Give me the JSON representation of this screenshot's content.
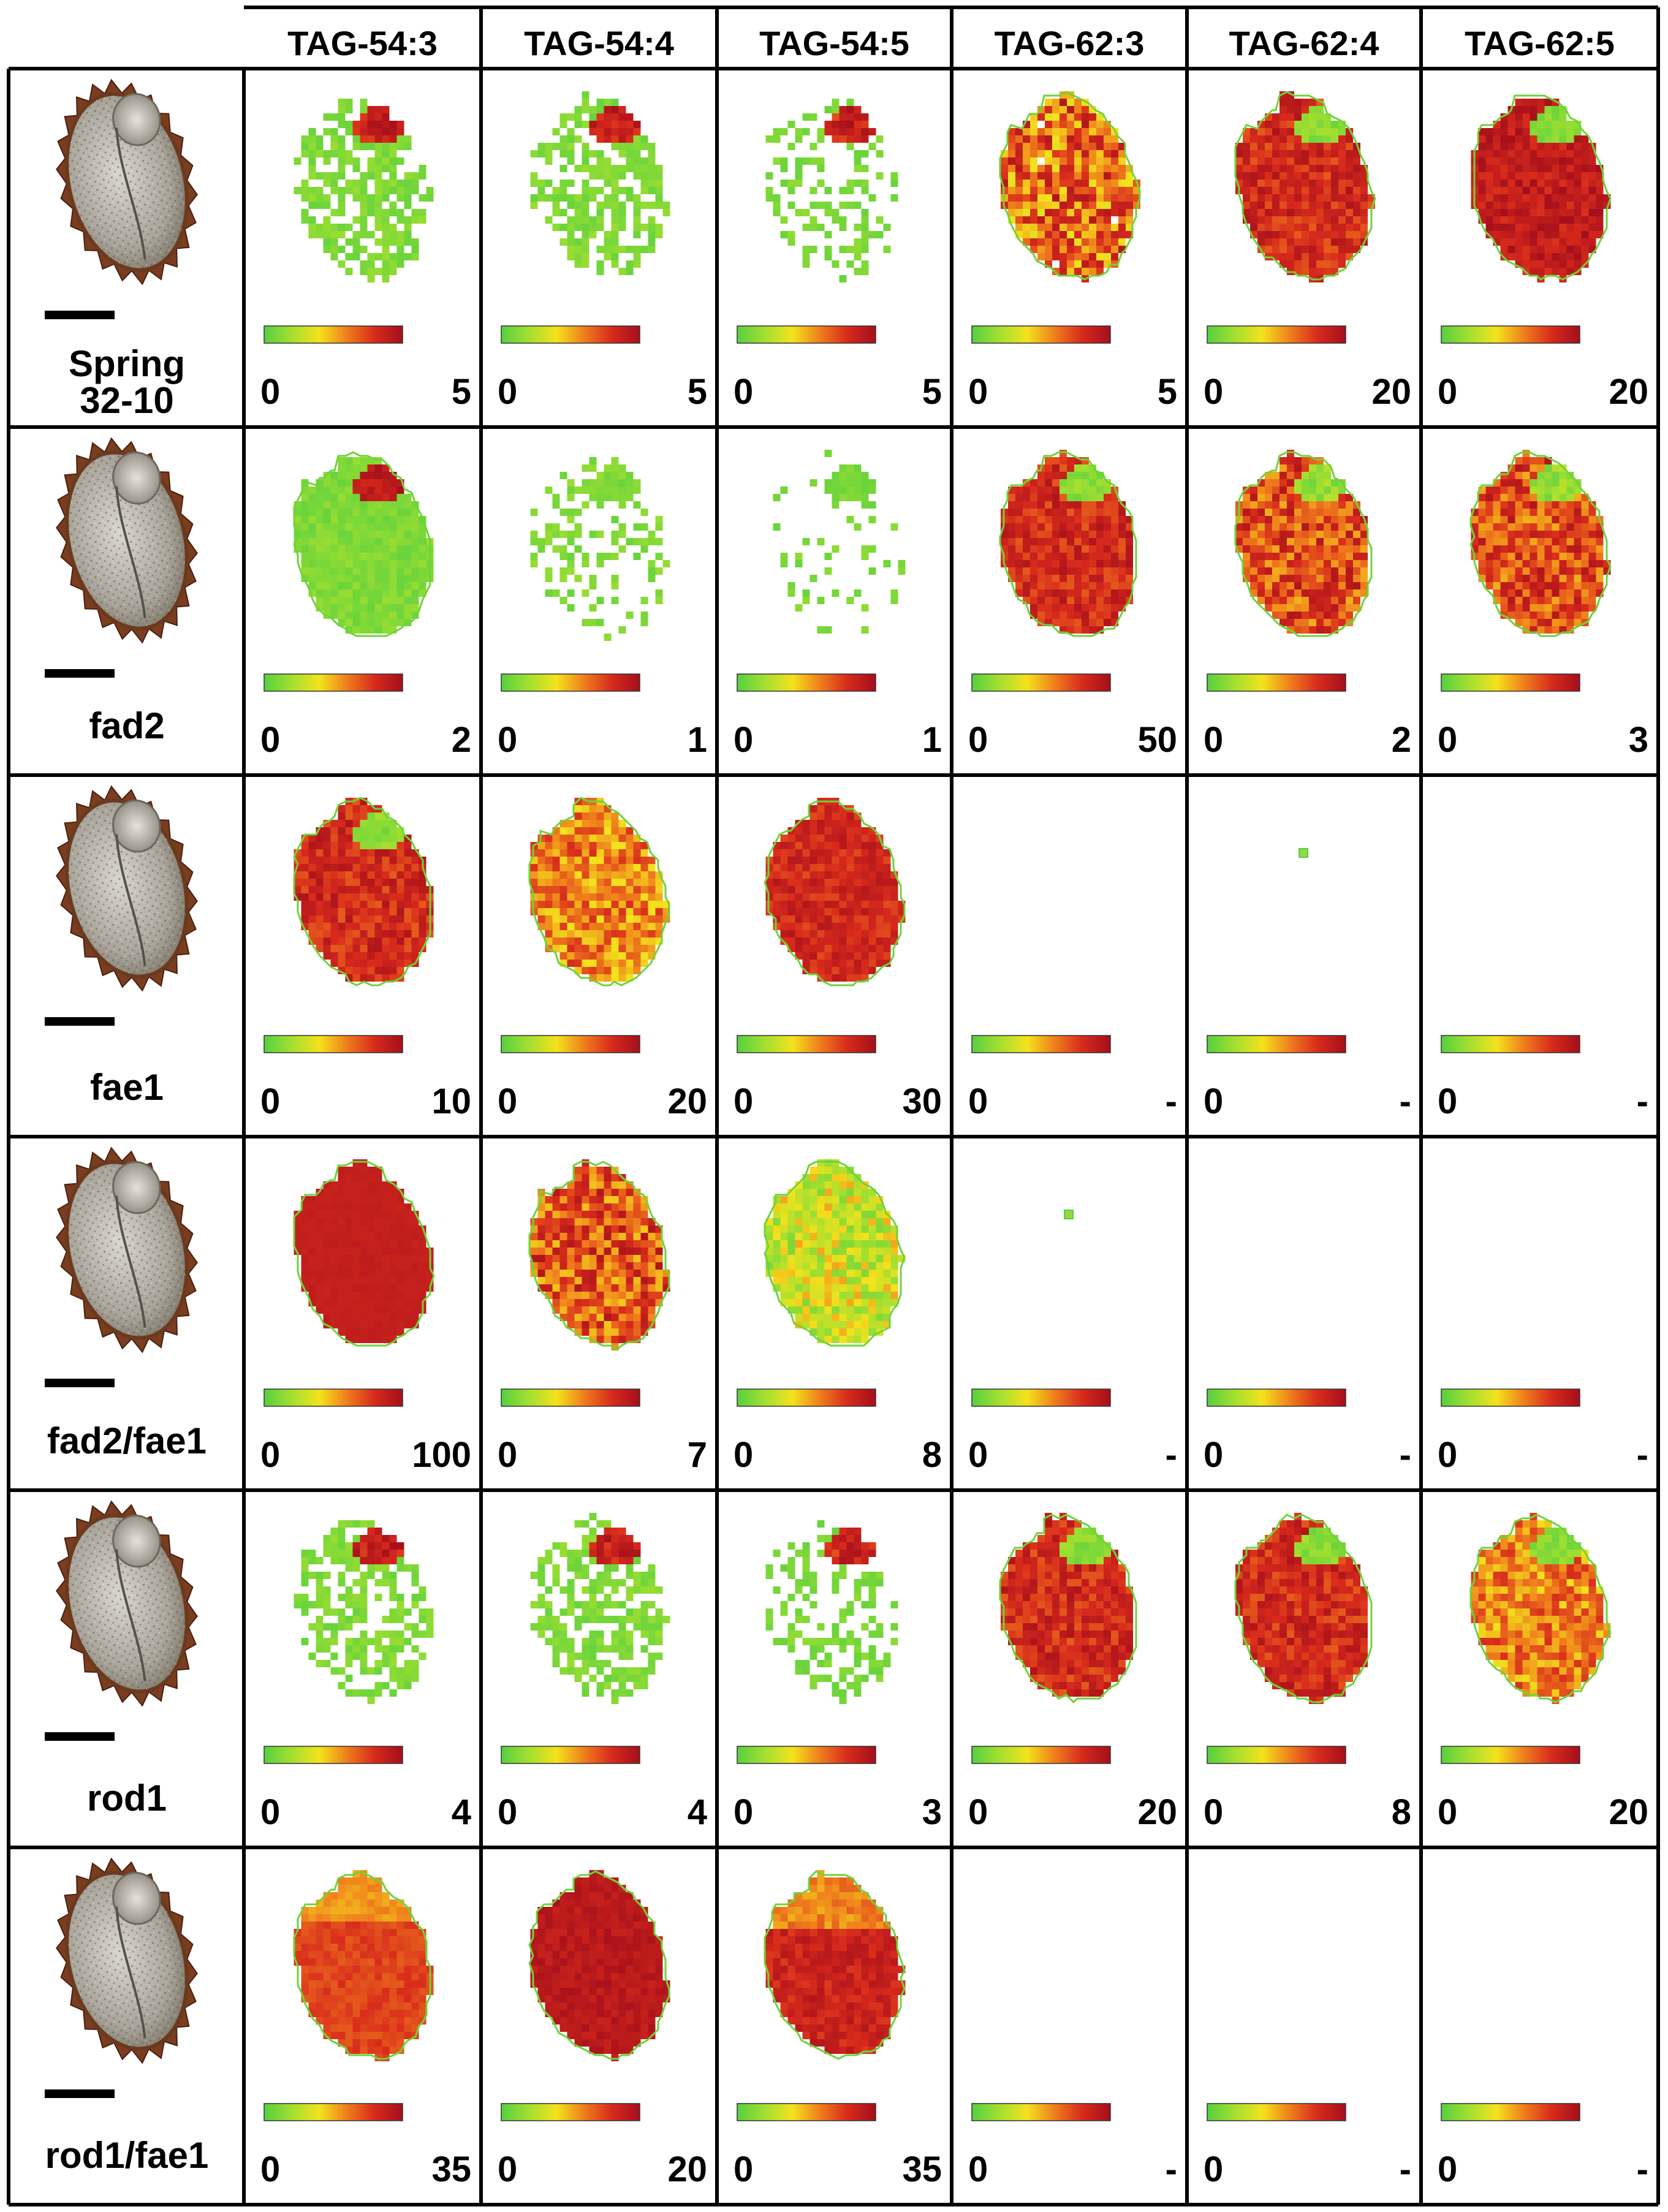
{
  "columns": [
    "TAG-54:3",
    "TAG-54:4",
    "TAG-54:5",
    "TAG-62:3",
    "TAG-62:4",
    "TAG-62:5"
  ],
  "colorbar": {
    "stops": [
      "#55d040",
      "#a4df30",
      "#f4e21c",
      "#ef7d1c",
      "#d72a1c",
      "#a50f1b"
    ]
  },
  "rows": [
    {
      "label_lines": [
        "Spring",
        "32-10"
      ],
      "scale_min": [
        "0",
        "0",
        "0",
        "0",
        "0",
        "0"
      ],
      "scale_max": [
        "5",
        "5",
        "5",
        "5",
        "20",
        "20"
      ],
      "maps": [
        "sparse-green-hotspot",
        "sparse-green-hotspot",
        "very-sparse-hotspot",
        "mixed-yellow-red",
        "red-green-top",
        "dark-red-green-top"
      ]
    },
    {
      "label_lines": [
        "fad2"
      ],
      "scale_min": [
        "0",
        "0",
        "0",
        "0",
        "0",
        "0"
      ],
      "scale_max": [
        "2",
        "1",
        "1",
        "50",
        "2",
        "3"
      ],
      "maps": [
        "green-hotspot",
        "sparse-green",
        "very-sparse-green",
        "red-green-top",
        "mixed-red-green-top",
        "mixed-red-green-top"
      ]
    },
    {
      "label_lines": [
        "fae1"
      ],
      "scale_min": [
        "0",
        "0",
        "0",
        "0",
        "0",
        "0"
      ],
      "scale_max": [
        "10",
        "20",
        "30",
        "-",
        "-",
        "-"
      ],
      "maps": [
        "red-green-top",
        "orange-yellow",
        "red",
        "empty",
        "single-pixel",
        "empty"
      ]
    },
    {
      "label_lines": [
        "fad2/fae1"
      ],
      "scale_min": [
        "0",
        "0",
        "0",
        "0",
        "0",
        "0"
      ],
      "scale_max": [
        "100",
        "7",
        "8",
        "-",
        "-",
        "-"
      ],
      "maps": [
        "solid-red",
        "red-orange-mixed",
        "yellow-green-mixed",
        "single-pixel",
        "empty",
        "empty"
      ]
    },
    {
      "label_lines": [
        "rod1"
      ],
      "scale_min": [
        "0",
        "0",
        "0",
        "0",
        "0",
        "0"
      ],
      "scale_max": [
        "4",
        "4",
        "3",
        "20",
        "8",
        "20"
      ],
      "maps": [
        "sparse-green-hotspot",
        "sparse-green-hotspot",
        "very-sparse-hotspot",
        "red-green-top",
        "red-green-top",
        "orange-green-top"
      ]
    },
    {
      "label_lines": [
        "rod1/fae1"
      ],
      "scale_min": [
        "0",
        "0",
        "0",
        "0",
        "0",
        "0"
      ],
      "scale_max": [
        "35",
        "20",
        "35",
        "-",
        "-",
        "-"
      ],
      "maps": [
        "orange",
        "dark-red",
        "red-orange-top",
        "empty",
        "empty",
        "empty"
      ]
    }
  ]
}
